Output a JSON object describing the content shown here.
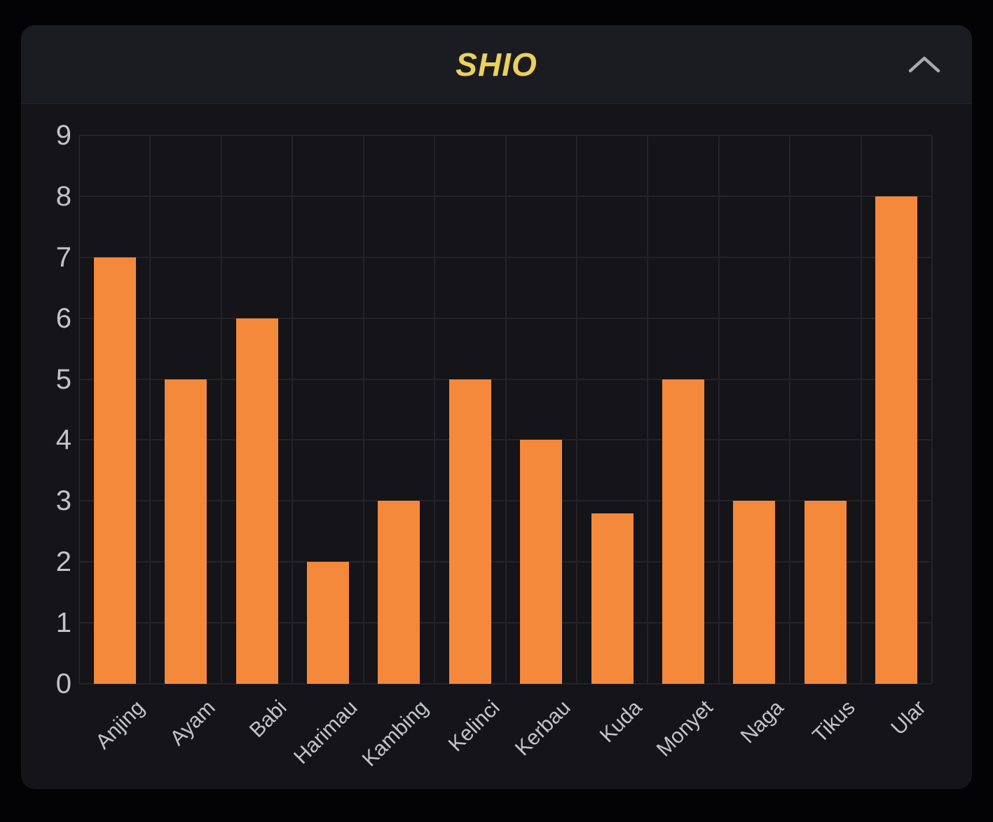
{
  "panel": {
    "title": "SHIO",
    "collapse_button": {
      "icon": "chevron-up-icon"
    }
  },
  "chart_data": {
    "type": "bar",
    "title": "SHIO",
    "categories": [
      "Anjing",
      "Ayam",
      "Babi",
      "Harimau",
      "Kambing",
      "Kelinci",
      "Kerbau",
      "Kuda",
      "Monyet",
      "Naga",
      "Tikus",
      "Ular"
    ],
    "values": [
      7,
      5,
      6,
      2,
      3,
      5,
      4,
      2.8,
      5,
      3,
      3,
      8
    ],
    "xlabel": "",
    "ylabel": "",
    "ylim": [
      0,
      9
    ],
    "yticks": [
      0,
      1,
      2,
      3,
      4,
      5,
      6,
      7,
      8,
      9
    ],
    "grid": true,
    "legend_position": "none",
    "bar_color": "#F5893B"
  },
  "colors": {
    "page_bg": "#030305",
    "panel_bg": "#141419",
    "header_bg": "#1B1C21",
    "title_color": "#EBD15C",
    "grid_color": "#232329",
    "bar_color": "#F5893B",
    "axis_label_color": "#C3C4CA",
    "chevron_color": "#A6A9B0"
  }
}
